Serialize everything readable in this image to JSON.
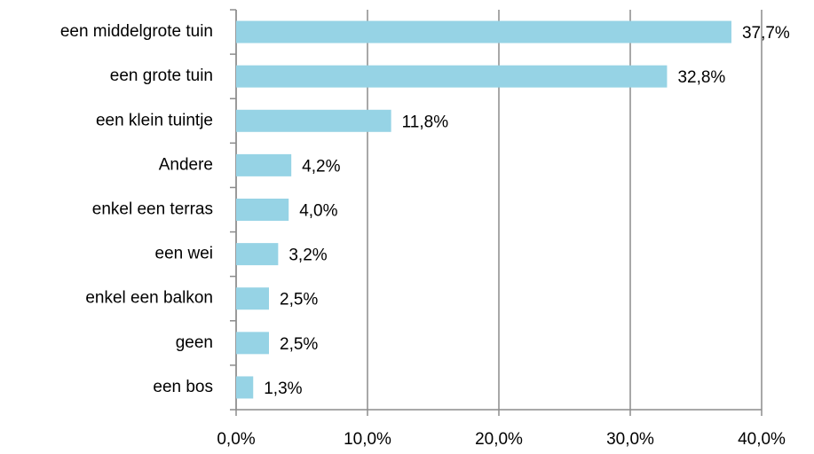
{
  "chart_data": {
    "type": "barh",
    "categories": [
      "een middelgrote tuin",
      "een grote tuin",
      "een klein tuintje",
      "Andere",
      "enkel een terras",
      "een wei",
      "enkel een balkon",
      "geen",
      "een bos"
    ],
    "values": [
      37.7,
      32.8,
      11.8,
      4.2,
      4.0,
      3.2,
      2.5,
      2.5,
      1.3
    ],
    "value_labels": [
      "37,7%",
      "32,8%",
      "11,8%",
      "4,2%",
      "4,0%",
      "3,2%",
      "2,5%",
      "2,5%",
      "1,3%"
    ],
    "color": "#96d3e5",
    "xlim": [
      0,
      40
    ],
    "xticks": [
      {
        "value": 0,
        "label": "0,0%"
      },
      {
        "value": 10,
        "label": "10,0%"
      },
      {
        "value": 20,
        "label": "20,0%"
      },
      {
        "value": 30,
        "label": "30,0%"
      },
      {
        "value": 40,
        "label": "40,0%"
      }
    ],
    "grid": true
  }
}
